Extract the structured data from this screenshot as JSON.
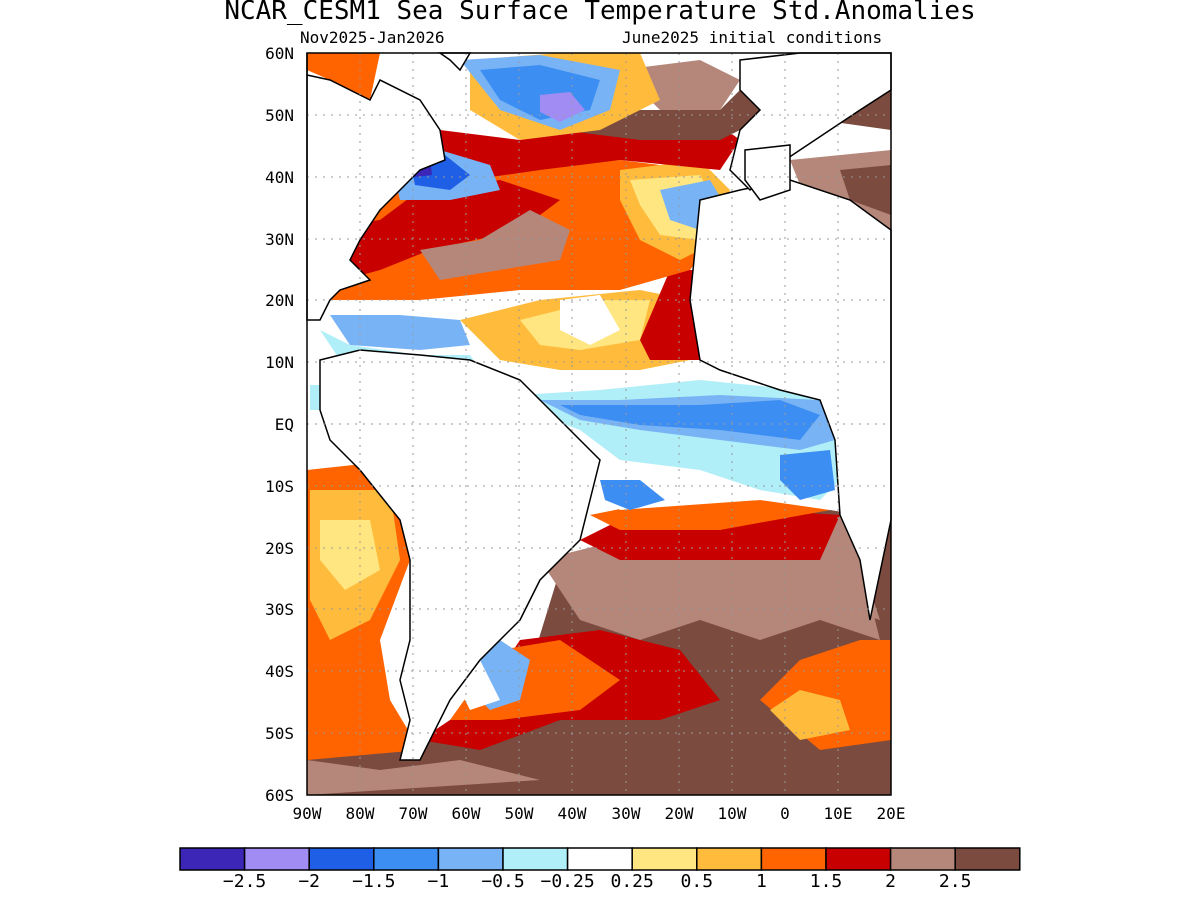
{
  "title": "NCAR_CESM1 Sea Surface Temperature Std.Anomalies",
  "subtitle_left": "Nov2025-Jan2026",
  "subtitle_right": "June2025 initial conditions",
  "map": {
    "lat_labels": [
      "60N",
      "50N",
      "40N",
      "30N",
      "20N",
      "10N",
      "EQ",
      "10S",
      "20S",
      "30S",
      "40S",
      "50S",
      "60S"
    ],
    "lon_labels": [
      "90W",
      "80W",
      "70W",
      "60W",
      "50W",
      "40W",
      "30W",
      "20W",
      "10W",
      "0",
      "10E",
      "20E"
    ],
    "lat_range": [
      -60,
      60
    ],
    "lon_range": [
      -90,
      20
    ],
    "grid": "dotted"
  },
  "colorbar": {
    "colors": [
      "#3b26b8",
      "#a08cf2",
      "#1e5fe6",
      "#3d8ef2",
      "#78b4f5",
      "#b0eef8",
      "#ffffff",
      "#ffe680",
      "#ffbb3c",
      "#ff6400",
      "#c80000",
      "#b4877a",
      "#7a4b3e"
    ],
    "labels": [
      "−2.5",
      "−2",
      "−1.5",
      "−1",
      "−0.5",
      "−0.25",
      "0.25",
      "0.5",
      "1",
      "1.5",
      "2",
      "2.5"
    ]
  },
  "regions": [
    {
      "name": "sst-anomaly-southern-ocean",
      "color": "#7a4b3e"
    },
    {
      "name": "sst-anomaly-equatorial-band",
      "color": "#3d8ef2"
    },
    {
      "name": "sst-anomaly-north-atlantic",
      "color": "#c80000"
    },
    {
      "name": "sst-anomaly-labrador",
      "color": "#1e5fe6"
    }
  ]
}
